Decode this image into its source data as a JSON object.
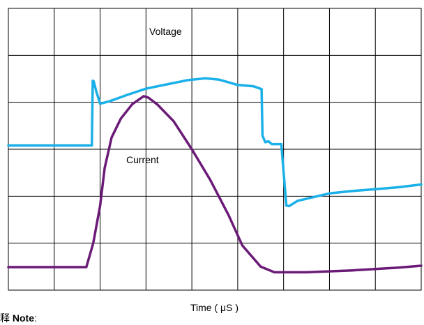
{
  "note": {
    "prefix": "释",
    "bold": "Note",
    "suffix": ":"
  },
  "chart_data": {
    "type": "line",
    "title": "",
    "xlabel": "Time ( μS )",
    "ylabel": "",
    "grid": true,
    "grid_divisions": {
      "x": 9,
      "y": 6
    },
    "xlim": [
      0,
      9
    ],
    "ylim": [
      0,
      6
    ],
    "series": [
      {
        "name": "Voltage",
        "color": "#1ab0e8",
        "x": [
          0,
          1.0,
          1.82,
          1.84,
          1.86,
          1.92,
          2.0,
          2.2,
          2.6,
          3.0,
          3.5,
          3.9,
          4.3,
          4.6,
          5.0,
          5.35,
          5.52,
          5.54,
          5.6,
          5.67,
          5.74,
          5.95,
          6.06,
          6.12,
          6.3,
          6.6,
          7.0,
          7.5,
          8.0,
          8.5,
          9.0
        ],
        "y": [
          3.08,
          3.08,
          3.08,
          4.46,
          4.45,
          4.22,
          3.97,
          4.02,
          4.16,
          4.29,
          4.39,
          4.47,
          4.51,
          4.48,
          4.37,
          4.34,
          4.28,
          3.29,
          3.15,
          3.17,
          3.11,
          3.11,
          1.8,
          1.79,
          1.9,
          1.97,
          2.06,
          2.11,
          2.15,
          2.19,
          2.25
        ]
      },
      {
        "name": "Current",
        "color": "#6b1b77",
        "x": [
          0,
          1.7,
          1.85,
          2.0,
          2.1,
          2.25,
          2.45,
          2.7,
          2.95,
          3.05,
          3.25,
          3.6,
          4.0,
          4.4,
          4.8,
          5.1,
          5.5,
          5.8,
          6.5,
          7.5,
          8.5,
          9.0
        ],
        "y": [
          0.49,
          0.49,
          1.0,
          1.8,
          2.6,
          3.25,
          3.65,
          3.96,
          4.13,
          4.1,
          3.95,
          3.6,
          3.0,
          2.35,
          1.6,
          0.95,
          0.5,
          0.38,
          0.38,
          0.42,
          0.48,
          0.52
        ]
      }
    ],
    "annotations": [
      "Voltage",
      "Current"
    ]
  }
}
